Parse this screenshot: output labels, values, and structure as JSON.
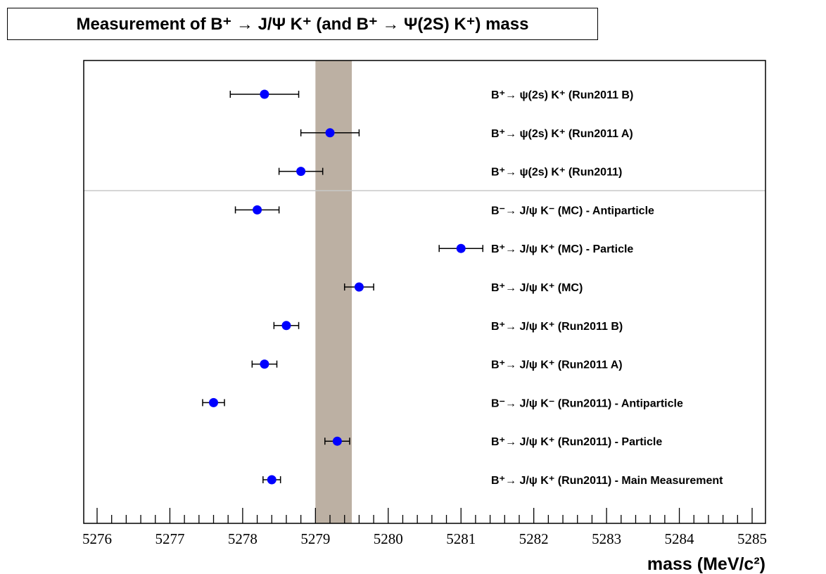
{
  "title": "Measurement of B⁺ → J/Ψ K⁺ (and B⁺ → Ψ(2S) K⁺) mass",
  "chart_data": {
    "type": "scatter",
    "xlabel": "mass (MeV/c²)",
    "xlim": [
      5276,
      5285
    ],
    "x_ticks": [
      "5276",
      "5277",
      "5278",
      "5279",
      "5280",
      "5281",
      "5282",
      "5283",
      "5284",
      "5285"
    ],
    "reference_band": [
      5279.0,
      5279.5
    ],
    "band_color": "#bcb0a3",
    "marker_color": "#0000ff",
    "separator_after_index": 2,
    "points": [
      {
        "label": "B⁺→ ψ(2s) K⁺ (Run2011 B)",
        "x": 5278.3,
        "xerr": 0.47
      },
      {
        "label": "B⁺→ ψ(2s) K⁺ (Run2011 A)",
        "x": 5279.2,
        "xerr": 0.4
      },
      {
        "label": "B⁺→ ψ(2s) K⁺ (Run2011)",
        "x": 5278.8,
        "xerr": 0.3
      },
      {
        "label": "B⁻→ J/ψ K⁻ (MC) - Antiparticle",
        "x": 5278.2,
        "xerr": 0.3
      },
      {
        "label": "B⁺→ J/ψ K⁺ (MC) - Particle",
        "x": 5281.0,
        "xerr": 0.3
      },
      {
        "label": "B⁺→ J/ψ K⁺ (MC)",
        "x": 5279.6,
        "xerr": 0.2
      },
      {
        "label": "B⁺→ J/ψ K⁺ (Run2011 B)",
        "x": 5278.6,
        "xerr": 0.17
      },
      {
        "label": "B⁺→ J/ψ K⁺ (Run2011 A)",
        "x": 5278.3,
        "xerr": 0.17
      },
      {
        "label": "B⁻→ J/ψ K⁻ (Run2011) - Antiparticle",
        "x": 5277.6,
        "xerr": 0.15
      },
      {
        "label": "B⁺→ J/ψ K⁺ (Run2011) - Particle",
        "x": 5279.3,
        "xerr": 0.17
      },
      {
        "label": "B⁺→ J/ψ K⁺ (Run2011) - Main Measurement",
        "x": 5278.4,
        "xerr": 0.12
      }
    ]
  }
}
